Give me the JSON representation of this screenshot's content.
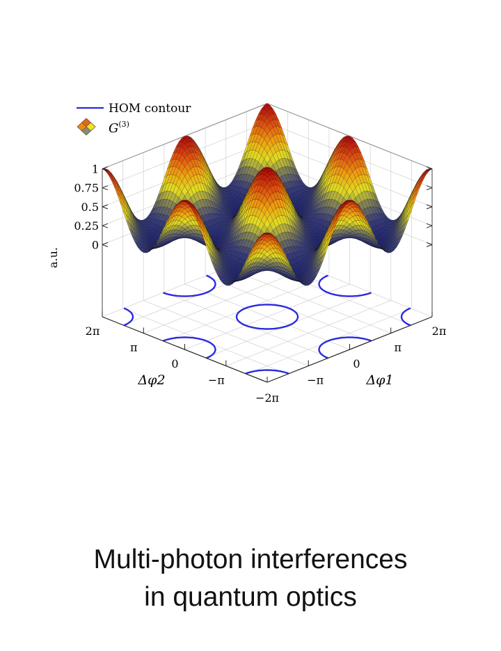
{
  "chart_data": {
    "type": "surface",
    "title": "",
    "xlabel": "Δφ1",
    "ylabel": "Δφ2",
    "zlabel": "a.u.",
    "xlim": [
      "-2π",
      "2π"
    ],
    "ylim": [
      "-2π",
      "2π"
    ],
    "zlim": [
      -0.95,
      1
    ],
    "xlim_rad": [
      -6.2832,
      6.2832
    ],
    "ylim_rad": [
      -6.2832,
      6.2832
    ],
    "x_ticks": [
      "−2π",
      "−π",
      "0",
      "π",
      "2π"
    ],
    "y_ticks": [
      "−2π",
      "−π",
      "0",
      "π",
      "2π"
    ],
    "z_ticks": [
      {
        "value": 0,
        "label": "0"
      },
      {
        "value": 0.25,
        "label": "0.25"
      },
      {
        "value": 0.5,
        "label": "0.5"
      },
      {
        "value": 0.75,
        "label": "0.75"
      },
      {
        "value": 1,
        "label": "1"
      }
    ],
    "grid": true,
    "legend_position": "top-left",
    "legend": [
      {
        "label": "HOM contour",
        "kind": "line",
        "color": "#2a2ae0"
      },
      {
        "label": "G",
        "superscript": "(3)",
        "kind": "surface"
      }
    ],
    "surface": {
      "name": "G(3)",
      "phase_weights": [
        1,
        1,
        1
      ],
      "normalization": 9,
      "peak_value": 1,
      "peaks_in_pi": [
        [
          0,
          0
        ],
        [
          2,
          0
        ],
        [
          -2,
          0
        ],
        [
          0,
          2
        ],
        [
          0,
          -2
        ],
        [
          2,
          2
        ],
        [
          2,
          -2
        ],
        [
          -2,
          2
        ],
        [
          -2,
          -2
        ]
      ],
      "colormap": [
        "#1e2370",
        "#3a3f7a",
        "#7d7d5a",
        "#e2dc22",
        "#f0a010",
        "#e05010",
        "#b00a0a"
      ]
    },
    "hom_contour": {
      "color": "#2a2ae0",
      "radius_rad": 1.65,
      "centers_in_pi": [
        [
          0,
          0
        ],
        [
          2,
          0
        ],
        [
          -2,
          0
        ],
        [
          0,
          2
        ],
        [
          0,
          -2
        ],
        [
          2,
          2
        ],
        [
          2,
          -2
        ],
        [
          -2,
          2
        ],
        [
          -2,
          -2
        ]
      ]
    }
  },
  "caption": {
    "line1": "Multi-photon interferences",
    "line2": "in quantum optics"
  }
}
